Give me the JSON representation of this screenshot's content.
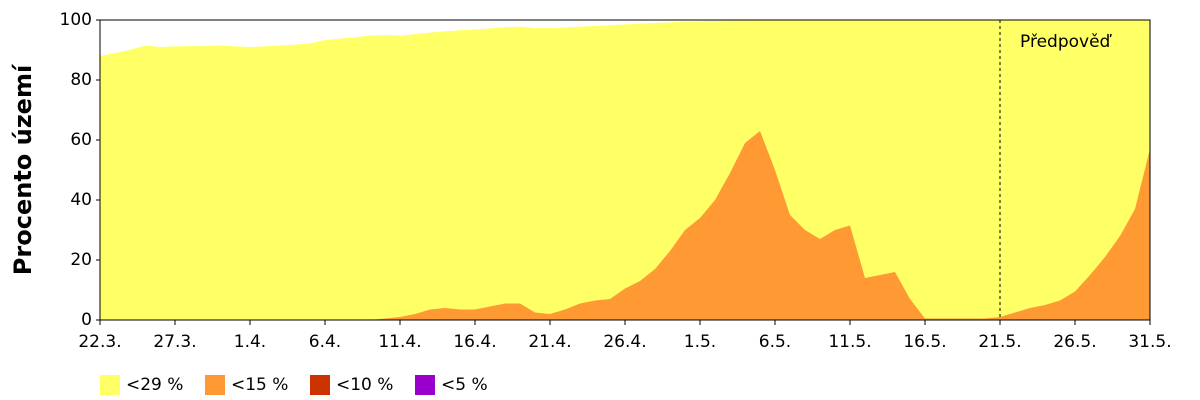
{
  "chart_data": {
    "type": "area",
    "y_label": "Procento území",
    "categories": [
      "22.3.",
      null,
      null,
      null,
      null,
      "27.3.",
      null,
      null,
      null,
      null,
      "1.4.",
      null,
      null,
      null,
      null,
      "6.4.",
      null,
      null,
      null,
      null,
      "11.4.",
      null,
      null,
      null,
      null,
      "16.4.",
      null,
      null,
      null,
      null,
      "21.4.",
      null,
      null,
      null,
      null,
      "26.4.",
      null,
      null,
      null,
      null,
      "1.5.",
      null,
      null,
      null,
      null,
      "6.5.",
      null,
      null,
      null,
      null,
      "11.5.",
      null,
      null,
      null,
      null,
      "16.5.",
      null,
      null,
      null,
      null,
      "21.5.",
      null,
      null,
      null,
      null,
      "26.5.",
      null,
      null,
      null,
      null,
      "31.5."
    ],
    "series": [
      {
        "name": "<29 %",
        "color": "#ffff66",
        "values": [
          88,
          89,
          90,
          91.5,
          91,
          91.2,
          91.3,
          91.3,
          91.5,
          91.2,
          91,
          91.2,
          91.5,
          91.8,
          92.2,
          93.3,
          93.8,
          94.2,
          94.8,
          95,
          94.8,
          95.3,
          95.8,
          96.2,
          96.6,
          96.8,
          97.2,
          97.6,
          97.8,
          97.3,
          97.3,
          97.5,
          97.8,
          98,
          98.3,
          98.5,
          98.8,
          99,
          99.2,
          99.5,
          99.6,
          99.7,
          99.8,
          99.8,
          99.9,
          100,
          100,
          100,
          100,
          100,
          100,
          100,
          100,
          100,
          100,
          100,
          100,
          100,
          100,
          100,
          100,
          100,
          100,
          100,
          100,
          100,
          100,
          100,
          100,
          100,
          100
        ]
      },
      {
        "name": "<15 %",
        "color": "#ff9933",
        "values": [
          0,
          0,
          0,
          0,
          0,
          0,
          0,
          0,
          0,
          0,
          0,
          0,
          0,
          0,
          0,
          0,
          0,
          0,
          0,
          0.5,
          1,
          2,
          3.5,
          4,
          3.5,
          3.5,
          4.5,
          5.5,
          5.5,
          2.5,
          2,
          3.5,
          5.5,
          6.5,
          7,
          10.5,
          13,
          17,
          23,
          30,
          34,
          40,
          49,
          59,
          63,
          50,
          35,
          30,
          27,
          30,
          31.5,
          14,
          15,
          16,
          7,
          0.5,
          0.5,
          0.5,
          0.5,
          0.5,
          1,
          2.5,
          4,
          5,
          6.5,
          9.5,
          15,
          21,
          28,
          37,
          57
        ]
      },
      {
        "name": "<10 %",
        "color": "#cc3300",
        "values": [
          0,
          0,
          0,
          0,
          0,
          0,
          0,
          0,
          0,
          0,
          0,
          0,
          0,
          0,
          0,
          0,
          0,
          0,
          0,
          0,
          0,
          0,
          0,
          0,
          0,
          0,
          0,
          0,
          0,
          0,
          0,
          0,
          0,
          0,
          0,
          0,
          0,
          0,
          0,
          0,
          0,
          0,
          0,
          0,
          0,
          0,
          0,
          0,
          0,
          0,
          0,
          0,
          0,
          0,
          0,
          0,
          0,
          0,
          0,
          0,
          0,
          0,
          0,
          0,
          0,
          0,
          0,
          0,
          0,
          0,
          0
        ]
      },
      {
        "name": "<5 %",
        "color": "#9900cc",
        "values": [
          0,
          0,
          0,
          0,
          0,
          0,
          0,
          0,
          0,
          0,
          0,
          0,
          0,
          0,
          0,
          0,
          0,
          0,
          0,
          0,
          0,
          0,
          0,
          0,
          0,
          0,
          0,
          0,
          0,
          0,
          0,
          0,
          0,
          0,
          0,
          0,
          0,
          0,
          0,
          0,
          0,
          0,
          0,
          0,
          0,
          0,
          0,
          0,
          0,
          0,
          0,
          0,
          0,
          0,
          0,
          0,
          0,
          0,
          0,
          0,
          0,
          0,
          0,
          0,
          0,
          0,
          0,
          0,
          0,
          0,
          0
        ]
      }
    ],
    "ylim": [
      0,
      100
    ],
    "yticks": [
      0,
      20,
      40,
      60,
      80,
      100
    ],
    "annotation": {
      "text": "Předpověď",
      "x": "21.5."
    },
    "legend": "bottom-left"
  }
}
